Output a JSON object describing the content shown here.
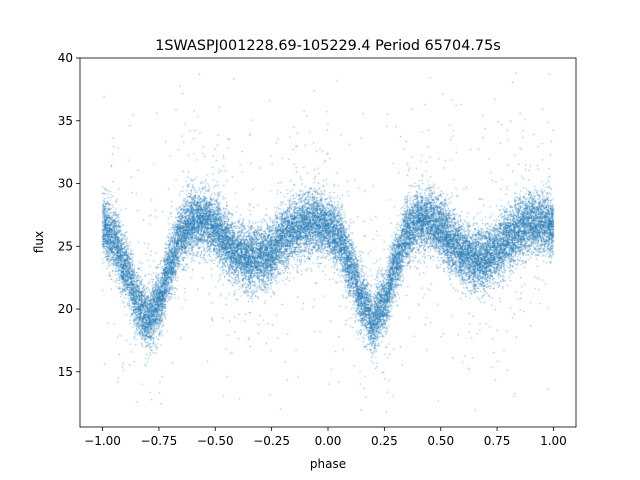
{
  "chart_data": {
    "type": "scatter",
    "title": "1SWASPJ001228.69-105229.4 Period 65704.75s",
    "xlabel": "phase",
    "ylabel": "flux",
    "xlim": [
      -1.1,
      1.1
    ],
    "ylim": [
      10.6,
      40.0
    ],
    "xticks": [
      -1.0,
      -0.75,
      -0.5,
      -0.25,
      0.0,
      0.25,
      0.5,
      0.75,
      1.0
    ],
    "xtick_labels": [
      "−1.00",
      "−0.75",
      "−0.50",
      "−0.25",
      "0.00",
      "0.25",
      "0.50",
      "0.75",
      "1.00"
    ],
    "yticks": [
      15,
      20,
      25,
      30,
      35,
      40
    ],
    "ytick_labels": [
      "15",
      "20",
      "25",
      "30",
      "35",
      "40"
    ],
    "grid": false,
    "legend": "none",
    "marker_color": "#1f77b4",
    "x_range": [
      -1.0,
      1.0
    ],
    "period_in_phase": 1.0,
    "curve_phase": [
      0.0,
      0.05,
      0.1,
      0.15,
      0.2,
      0.25,
      0.3,
      0.35,
      0.4,
      0.45,
      0.5,
      0.55,
      0.6,
      0.65,
      0.7,
      0.75,
      0.8,
      0.85,
      0.9,
      0.95,
      1.0
    ],
    "curve_flux": [
      26.5,
      25.6,
      23.4,
      20.8,
      19.0,
      20.5,
      23.5,
      26.0,
      27.0,
      27.1,
      26.4,
      25.3,
      24.4,
      24.0,
      24.1,
      24.6,
      25.6,
      26.4,
      26.8,
      26.9,
      26.5
    ],
    "scatter_sigma": 1.2
  }
}
